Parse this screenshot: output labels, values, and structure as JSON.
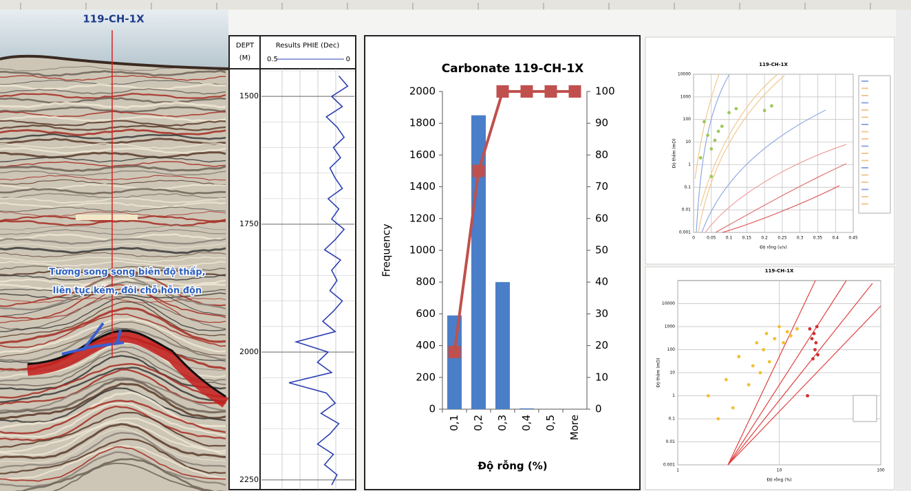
{
  "seismic": {
    "well_name": "119-CH-1X",
    "annotation": [
      "Tương song song biên độ thấp,",
      "liên tục kém, đôi chỗ hỗn độn"
    ]
  },
  "well_log": {
    "depth_header": "DEPT",
    "depth_unit": "(M)",
    "curve_header": "Results PHIE (Dec)",
    "xlim": [
      0.5,
      0
    ],
    "xticks": [
      0.5,
      0
    ],
    "ylim": [
      1446,
      2269
    ],
    "yticks": [
      1500,
      1750,
      2000,
      2250
    ],
    "color": "#2a3fb0",
    "depth": [
      1460,
      1480,
      1500,
      1520,
      1540,
      1560,
      1580,
      1600,
      1620,
      1640,
      1660,
      1680,
      1700,
      1720,
      1740,
      1760,
      1780,
      1800,
      1820,
      1840,
      1860,
      1880,
      1900,
      1920,
      1940,
      1960,
      1980,
      2000,
      2020,
      2040,
      2060,
      2080,
      2100,
      2120,
      2140,
      2160,
      2180,
      2200,
      2220,
      2240,
      2260
    ],
    "phie": [
      0.08,
      0.03,
      0.12,
      0.06,
      0.15,
      0.09,
      0.05,
      0.11,
      0.07,
      0.13,
      0.1,
      0.06,
      0.14,
      0.08,
      0.12,
      0.05,
      0.1,
      0.16,
      0.07,
      0.12,
      0.09,
      0.13,
      0.06,
      0.11,
      0.17,
      0.1,
      0.32,
      0.14,
      0.2,
      0.12,
      0.36,
      0.15,
      0.1,
      0.18,
      0.08,
      0.13,
      0.2,
      0.11,
      0.16,
      0.09,
      0.12
    ]
  },
  "chart_data": {
    "type": "bar",
    "title": "Carbonate 119-CH-1X",
    "x_label": "Độ rỗng (%)",
    "y_label": "Frequency",
    "categories": [
      "0,1",
      "0,2",
      "0,3",
      "0,4",
      "0,5",
      "More"
    ],
    "series": [
      {
        "type": "bar",
        "color": "#4a7ec8",
        "values": [
          590,
          1850,
          800,
          5,
          0,
          0
        ]
      },
      {
        "type": "line",
        "axis": "y2",
        "color": "#c0504d",
        "values": [
          18,
          75,
          100,
          100,
          100,
          100
        ]
      }
    ],
    "ylim": [
      0,
      2000
    ],
    "yticks": [
      0,
      200,
      400,
      600,
      800,
      1000,
      1200,
      1400,
      1600,
      1800,
      2000
    ],
    "y2lim": [
      0,
      100
    ],
    "y2ticks": [
      0,
      10,
      20,
      30,
      40,
      50,
      60,
      70,
      80,
      90,
      100
    ],
    "grid": false
  },
  "crossplot_top": {
    "title": "119-CH-1X",
    "x_label": "Độ rỗng (v/v)",
    "y_label": "Độ thấm (mD)",
    "log_y": true,
    "log_x": false,
    "xlim": [
      0,
      0.45
    ],
    "xticks": [
      0,
      0.05,
      0.1,
      0.15,
      0.2,
      0.25,
      0.3,
      0.35,
      0.4,
      0.45
    ],
    "ylim": [
      0.001,
      10000
    ],
    "yticks": [
      0.001,
      0.01,
      0.1,
      1,
      10,
      100,
      1000,
      10000
    ],
    "series": [
      {
        "color": "#9bc85a",
        "x": [
          0.03,
          0.04,
          0.05,
          0.06,
          0.07,
          0.08,
          0.1,
          0.12,
          0.2,
          0.22,
          0.05,
          0.02
        ],
        "y": [
          80,
          20,
          5,
          12,
          30,
          50,
          200,
          300,
          250,
          400,
          0.3,
          2
        ]
      }
    ]
  },
  "crossplot_bottom": {
    "title": "119-CH-1X",
    "x_label": "Độ rỗng (%)",
    "y_label": "Độ thấm (mD)",
    "log_y": true,
    "log_x": true,
    "xlim": [
      1,
      100
    ],
    "xticks": [
      1,
      10,
      100
    ],
    "ylim": [
      0.001,
      100000
    ],
    "yticks": [
      0.001,
      0.01,
      0.1,
      1,
      10,
      100,
      1000,
      10000
    ],
    "series": [
      {
        "color": "#f0c030",
        "x": [
          2,
          2.5,
          3,
          3.5,
          4,
          5,
          5.5,
          6,
          6.5,
          7,
          7.5,
          8,
          9,
          10,
          11,
          12,
          13,
          15
        ],
        "y": [
          1,
          0.1,
          5,
          0.3,
          50,
          3,
          20,
          200,
          10,
          100,
          500,
          30,
          300,
          1000,
          200,
          600,
          400,
          800
        ]
      },
      {
        "color": "#d03030",
        "x": [
          20,
          21,
          22,
          22.5,
          23,
          24,
          21.5,
          23.5,
          19
        ],
        "y": [
          800,
          300,
          500,
          100,
          200,
          60,
          40,
          1000,
          1
        ]
      }
    ]
  }
}
